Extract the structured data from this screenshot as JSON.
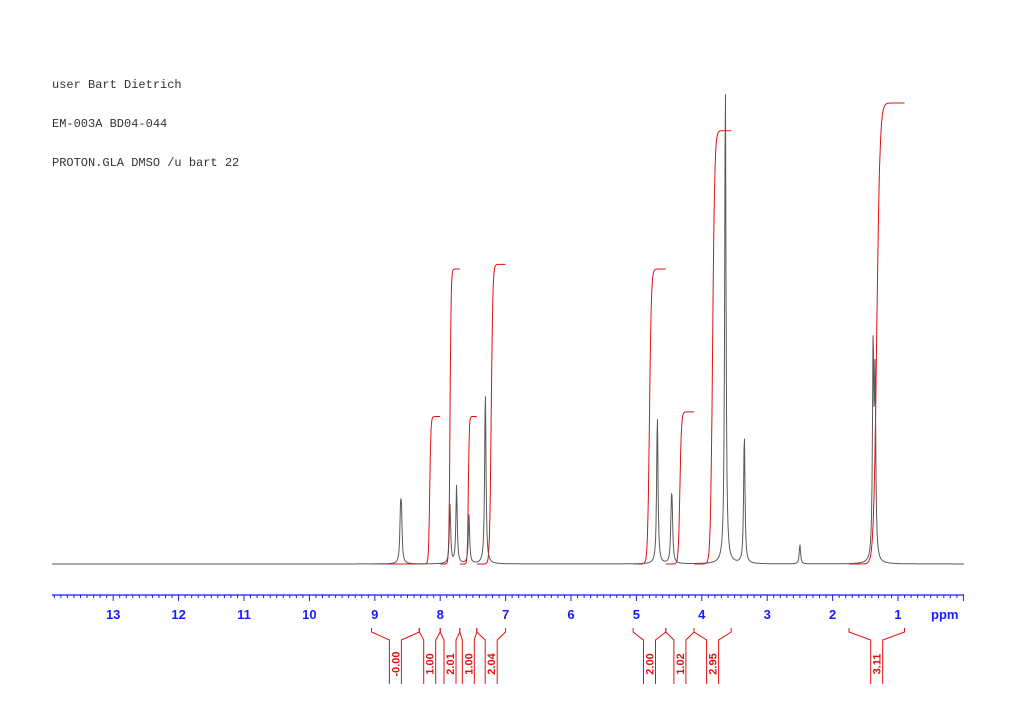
{
  "header": {
    "lines": [
      "user Bart Dietrich",
      "EM-003A BD04-044",
      "PROTON.GLA DMSO /u bart 22"
    ]
  },
  "colors": {
    "spectrum": "#5a5a5a",
    "integral": "#e01010",
    "axis": "#1a1aff",
    "text": "#333333"
  },
  "chart_data": {
    "type": "line",
    "title": "",
    "xlabel": "ppm",
    "ylabel": "",
    "xlim": [
      14.0,
      0.0
    ],
    "x_reversed": true,
    "x_ticks": [
      13,
      12,
      11,
      10,
      9,
      8,
      7,
      6,
      5,
      4,
      3,
      2,
      1
    ],
    "x_tick_labels": [
      "13",
      "12",
      "11",
      "10",
      "9",
      "8",
      "7",
      "6",
      "5",
      "4",
      "3",
      "2",
      "1"
    ],
    "unit_label": "ppm",
    "peaks": [
      {
        "ppm": 8.6,
        "intensity": 0.09,
        "splitting": 0.014
      },
      {
        "ppm": 7.85,
        "intensity": 0.12,
        "splitting": 0
      },
      {
        "ppm": 7.75,
        "intensity": 0.16,
        "splitting": 0
      },
      {
        "ppm": 7.56,
        "intensity": 0.1,
        "splitting": 0
      },
      {
        "ppm": 7.31,
        "intensity": 0.36,
        "splitting": 0
      },
      {
        "ppm": 4.68,
        "intensity": 0.31,
        "splitting": 0
      },
      {
        "ppm": 4.46,
        "intensity": 0.09,
        "splitting": 0.012
      },
      {
        "ppm": 3.64,
        "intensity": 1.0,
        "splitting": 0
      },
      {
        "ppm": 3.35,
        "intensity": 0.27,
        "splitting": 0
      },
      {
        "ppm": 2.5,
        "intensity": 0.04,
        "splitting": 0
      },
      {
        "ppm": 1.38,
        "intensity": 0.44,
        "splitting": 0
      },
      {
        "ppm": 1.35,
        "intensity": 0.36,
        "splitting": 0
      }
    ],
    "integrals": [
      {
        "from": 9.05,
        "to": 8.32,
        "value": "-0.00",
        "rise": 0.0
      },
      {
        "from": 8.32,
        "to": 8.0,
        "value": "1.00",
        "rise": 0.32
      },
      {
        "from": 8.0,
        "to": 7.7,
        "value": "2.01",
        "rise": 0.64
      },
      {
        "from": 7.7,
        "to": 7.44,
        "value": "1.00",
        "rise": 0.32
      },
      {
        "from": 7.44,
        "to": 7.0,
        "value": "2.04",
        "rise": 0.65
      },
      {
        "from": 5.05,
        "to": 4.55,
        "value": "2.00",
        "rise": 0.64
      },
      {
        "from": 4.55,
        "to": 4.12,
        "value": "1.02",
        "rise": 0.33
      },
      {
        "from": 4.12,
        "to": 3.55,
        "value": "2.95",
        "rise": 0.94
      },
      {
        "from": 1.75,
        "to": 0.9,
        "value": "3.11",
        "rise": 1.0
      }
    ]
  }
}
